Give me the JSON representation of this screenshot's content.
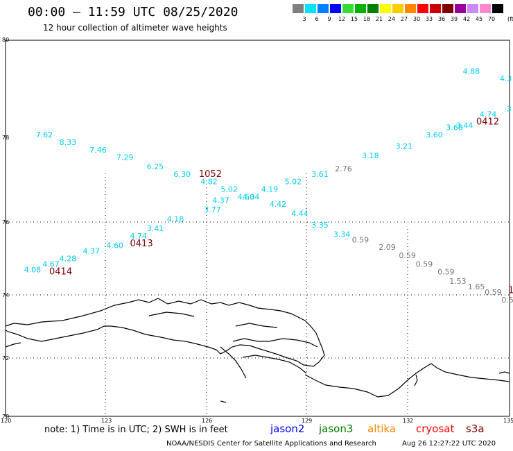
{
  "header": {
    "title": "00:00 – 11:59 UTC 08/25/2020",
    "subtitle": "12 hour collection of altimeter wave heights"
  },
  "legend": {
    "unit": "(ft)",
    "items": [
      {
        "label": "3",
        "color": "#7f7f7f"
      },
      {
        "label": "6",
        "color": "#00e5ff"
      },
      {
        "label": "9",
        "color": "#0080ff"
      },
      {
        "label": "12",
        "color": "#0000ff"
      },
      {
        "label": "15",
        "color": "#33dd33"
      },
      {
        "label": "18",
        "color": "#00b300"
      },
      {
        "label": "21",
        "color": "#008000"
      },
      {
        "label": "24",
        "color": "#ffff00"
      },
      {
        "label": "27",
        "color": "#ffcc00"
      },
      {
        "label": "30",
        "color": "#ff8800"
      },
      {
        "label": "33",
        "color": "#ff0000"
      },
      {
        "label": "36",
        "color": "#cc0000"
      },
      {
        "label": "39",
        "color": "#800000"
      },
      {
        "label": "42",
        "color": "#990099"
      },
      {
        "label": "45",
        "color": "#cc88ff"
      },
      {
        "label": "70",
        "color": "#ff88cc"
      },
      {
        "label": "",
        "color": "#000000"
      }
    ]
  },
  "axes": {
    "lon_labels": [
      "120",
      "123",
      "126",
      "129",
      "132",
      "135"
    ],
    "lat_labels": [
      "80",
      "78",
      "76",
      "74",
      "72",
      "70"
    ]
  },
  "colors": {
    "cyan": "#00ccee",
    "gray": "#777777",
    "time_red": "#800000",
    "jason2": "#0000ff",
    "jason3": "#008000",
    "altika": "#ff8800",
    "cryosat": "#ff0000",
    "s3a": "#800000"
  },
  "observations": {
    "cyan": [
      {
        "text": "4.88",
        "lon": 133.6,
        "lat": 79.9
      },
      {
        "text": "4.3",
        "lon": 134.7,
        "lat": 79.7
      },
      {
        "text": "7.62",
        "lon": 120.9,
        "lat": 78.2
      },
      {
        "text": "8.33",
        "lon": 121.6,
        "lat": 78.0
      },
      {
        "text": "7.46",
        "lon": 122.5,
        "lat": 77.8
      },
      {
        "text": "7.29",
        "lon": 123.3,
        "lat": 77.6
      },
      {
        "text": "6.25",
        "lon": 124.2,
        "lat": 77.35
      },
      {
        "text": "6.30",
        "lon": 125.0,
        "lat": 77.15
      },
      {
        "text": "4.82",
        "lon": 125.8,
        "lat": 76.95
      },
      {
        "text": "5.02",
        "lon": 126.4,
        "lat": 76.75
      },
      {
        "text": "4.50",
        "lon": 126.9,
        "lat": 76.55
      },
      {
        "text": "4.34",
        "lon": 127.05,
        "lat": 76.55
      },
      {
        "text": "4.19",
        "lon": 127.6,
        "lat": 76.75
      },
      {
        "text": "5.02",
        "lon": 128.3,
        "lat": 76.95
      },
      {
        "text": "3.61",
        "lon": 129.1,
        "lat": 77.15
      },
      {
        "text": "4.37",
        "lon": 126.15,
        "lat": 76.45
      },
      {
        "text": "3.77",
        "lon": 125.9,
        "lat": 76.2
      },
      {
        "text": "4.18",
        "lon": 124.8,
        "lat": 75.95
      },
      {
        "text": "3.41",
        "lon": 124.2,
        "lat": 75.7
      },
      {
        "text": "4.74",
        "lon": 123.7,
        "lat": 75.5
      },
      {
        "text": "4.60",
        "lon": 123.0,
        "lat": 75.25
      },
      {
        "text": "4.37",
        "lon": 122.3,
        "lat": 75.1
      },
      {
        "text": "4.28",
        "lon": 121.6,
        "lat": 74.9
      },
      {
        "text": "4.67",
        "lon": 121.1,
        "lat": 74.75
      },
      {
        "text": "4.08",
        "lon": 120.55,
        "lat": 74.6
      },
      {
        "text": "4.42",
        "lon": 127.85,
        "lat": 76.35
      },
      {
        "text": "4.44",
        "lon": 128.5,
        "lat": 76.1
      },
      {
        "text": "3.35",
        "lon": 129.1,
        "lat": 75.8
      },
      {
        "text": "3.34",
        "lon": 129.75,
        "lat": 75.55
      },
      {
        "text": "3.18",
        "lon": 130.6,
        "lat": 77.65
      },
      {
        "text": "3.21",
        "lon": 131.6,
        "lat": 77.9
      },
      {
        "text": "3.60",
        "lon": 132.5,
        "lat": 78.2
      },
      {
        "text": "3.68",
        "lon": 133.1,
        "lat": 78.4
      },
      {
        "text": "3.44",
        "lon": 133.4,
        "lat": 78.45
      },
      {
        "text": "4.74",
        "lon": 134.1,
        "lat": 78.75
      },
      {
        "text": "3",
        "lon": 134.9,
        "lat": 78.9
      }
    ],
    "gray": [
      {
        "text": "2.76",
        "lon": 129.8,
        "lat": 77.3
      },
      {
        "text": "0.59",
        "lon": 130.3,
        "lat": 75.4
      },
      {
        "text": "2.09",
        "lon": 131.1,
        "lat": 75.2
      },
      {
        "text": "0.59",
        "lon": 131.7,
        "lat": 74.98
      },
      {
        "text": "0.59",
        "lon": 132.2,
        "lat": 74.75
      },
      {
        "text": "0.59",
        "lon": 132.85,
        "lat": 74.55
      },
      {
        "text": "1.53",
        "lon": 133.2,
        "lat": 74.3
      },
      {
        "text": "1.65",
        "lon": 133.75,
        "lat": 74.15
      },
      {
        "text": "0.59",
        "lon": 134.25,
        "lat": 74.0
      },
      {
        "text": "0.5",
        "lon": 134.75,
        "lat": 73.8
      }
    ],
    "times": [
      {
        "text": "1052",
        "lon": 125.75,
        "lat": 77.15
      },
      {
        "text": "0413",
        "lon": 123.7,
        "lat": 75.3
      },
      {
        "text": "0414",
        "lon": 121.3,
        "lat": 74.55
      },
      {
        "text": "0412",
        "lon": 134.0,
        "lat": 78.55
      },
      {
        "text": "1",
        "lon": 134.95,
        "lat": 74.05
      }
    ]
  },
  "footer": {
    "note": "note: 1) Time is in UTC; 2) SWH is in feet",
    "missions": [
      "jason2",
      "jason3",
      "altika",
      "cryosat",
      "s3a"
    ],
    "credit": "NOAA/NESDIS Center for Satellite Applications and Research",
    "timestamp": "Aug 26 12:27:22 UTC 2020"
  }
}
